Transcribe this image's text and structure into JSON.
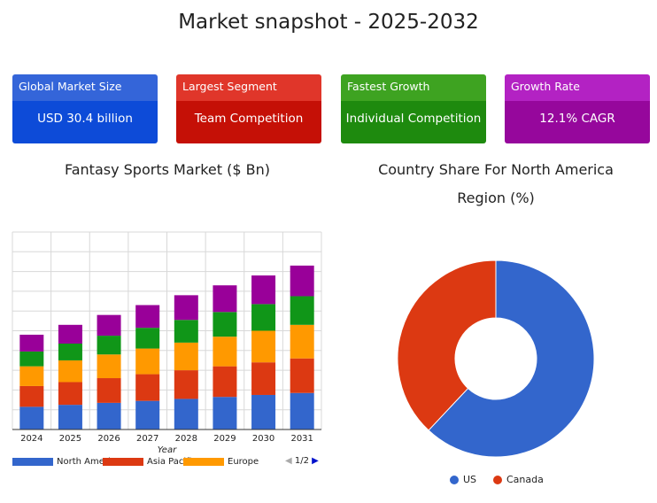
{
  "header": {
    "title": "Market snapshot - 2025-2032"
  },
  "cards": [
    {
      "label": "Global Market Size",
      "value": "USD 30.4 billion",
      "head_color": "#3465d9",
      "body_color": "#0d4bd8"
    },
    {
      "label": "Largest Segment",
      "value": "Team Competition",
      "head_color": "#e0362a",
      "body_color": "#c51006"
    },
    {
      "label": "Fastest Growth",
      "value": "Individual Competition",
      "head_color": "#3ea321",
      "body_color": "#1e8a0e"
    },
    {
      "label": "Growth Rate",
      "value": "12.1% CAGR",
      "head_color": "#b322c3",
      "body_color": "#96079c"
    }
  ],
  "legend_pager": "1/2",
  "chart_data": [
    {
      "type": "bar",
      "stacked": true,
      "title": "Fantasy Sports Market ($ Bn)",
      "xlabel": "Year",
      "ylabel": "",
      "categories": [
        "2024",
        "2025",
        "2026",
        "2027",
        "2028",
        "2029",
        "2030",
        "2031"
      ],
      "grid": true,
      "ylim": [
        0,
        10
      ],
      "series": [
        {
          "name": "North America",
          "color": "#3366cc",
          "values": [
            1.15,
            1.25,
            1.35,
            1.45,
            1.55,
            1.65,
            1.75,
            1.85
          ]
        },
        {
          "name": "Asia Pacific",
          "color": "#dc3912",
          "values": [
            1.05,
            1.15,
            1.25,
            1.35,
            1.45,
            1.55,
            1.65,
            1.75
          ]
        },
        {
          "name": "Europe",
          "color": "#ff9900",
          "values": [
            1.0,
            1.1,
            1.2,
            1.3,
            1.4,
            1.5,
            1.6,
            1.7
          ]
        },
        {
          "name": "",
          "color": "#109618",
          "values": [
            0.75,
            0.85,
            0.95,
            1.05,
            1.15,
            1.25,
            1.35,
            1.45
          ]
        },
        {
          "name": "",
          "color": "#990099",
          "values": [
            0.85,
            0.95,
            1.05,
            1.15,
            1.25,
            1.35,
            1.45,
            1.55
          ]
        }
      ],
      "legend_position": "bottom"
    },
    {
      "type": "pie",
      "donut": true,
      "title": "Country Share For North America Region (%)",
      "labels": [
        "US",
        "Canada"
      ],
      "values": [
        62,
        38
      ],
      "colors": [
        "#3366cc",
        "#dc3912"
      ],
      "legend_position": "bottom"
    }
  ]
}
